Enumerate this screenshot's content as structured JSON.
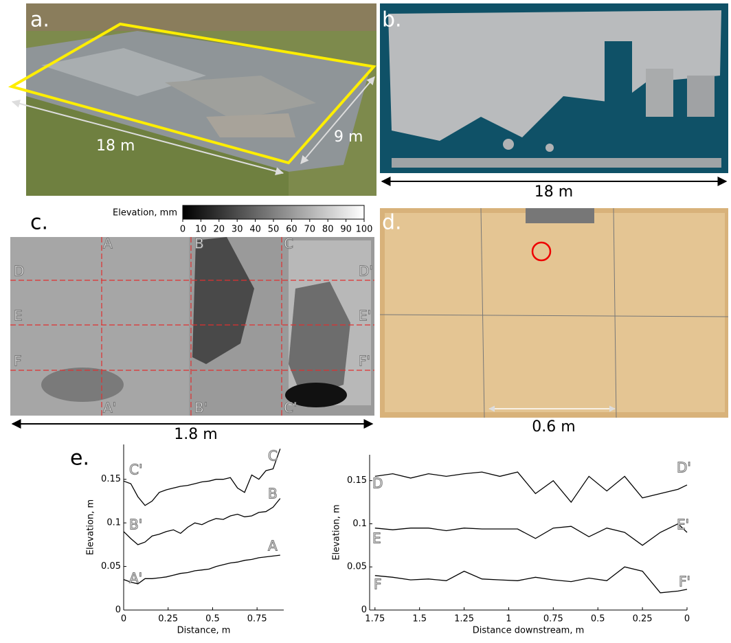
{
  "panels": {
    "a": {
      "label": "a.",
      "length": "18 m",
      "width": "9 m"
    },
    "b": {
      "label": "b.",
      "scale": "18 m"
    },
    "c": {
      "label": "c.",
      "scale": "1.8 m",
      "colorbar": {
        "title": "Elevation, mm",
        "ticks": [
          0,
          10,
          20,
          30,
          40,
          50,
          60,
          70,
          80,
          90,
          100
        ]
      },
      "sections": [
        "A",
        "A'",
        "B",
        "B'",
        "C",
        "C'",
        "D",
        "D'",
        "E",
        "E'",
        "F",
        "F'"
      ]
    },
    "d": {
      "label": "d.",
      "scale": "0.6 m"
    },
    "e": {
      "label": "e."
    }
  },
  "chart_data": [
    {
      "type": "line",
      "xlabel": "Distance, m",
      "ylabel": "Elevation, m",
      "x": [
        0,
        0.04,
        0.08,
        0.12,
        0.16,
        0.2,
        0.24,
        0.28,
        0.32,
        0.36,
        0.4,
        0.44,
        0.48,
        0.52,
        0.56,
        0.6,
        0.64,
        0.68,
        0.72,
        0.76,
        0.8,
        0.84,
        0.88
      ],
      "xlim": [
        0,
        0.9
      ],
      "xticks": [
        0,
        0.25,
        0.5,
        0.75
      ],
      "ylim": [
        0,
        0.19
      ],
      "yticks": [
        0,
        0.05,
        0.1,
        0.15
      ],
      "series": [
        {
          "name": "C",
          "color": "#000000",
          "values": [
            0.148,
            0.145,
            0.13,
            0.12,
            0.125,
            0.135,
            0.138,
            0.14,
            0.142,
            0.143,
            0.145,
            0.147,
            0.148,
            0.15,
            0.15,
            0.152,
            0.14,
            0.135,
            0.155,
            0.15,
            0.16,
            0.162,
            0.185
          ]
        },
        {
          "name": "B",
          "color": "#000000",
          "values": [
            0.09,
            0.082,
            0.075,
            0.078,
            0.085,
            0.087,
            0.09,
            0.092,
            0.088,
            0.095,
            0.1,
            0.098,
            0.102,
            0.105,
            0.104,
            0.108,
            0.11,
            0.107,
            0.108,
            0.112,
            0.113,
            0.118,
            0.128
          ]
        },
        {
          "name": "A",
          "color": "#000000",
          "values": [
            0.035,
            0.032,
            0.03,
            0.036,
            0.036,
            0.037,
            0.038,
            0.04,
            0.042,
            0.043,
            0.045,
            0.046,
            0.047,
            0.05,
            0.052,
            0.054,
            0.055,
            0.057,
            0.058,
            0.06,
            0.061,
            0.062,
            0.063
          ]
        }
      ],
      "annotations": [
        "C'",
        "C",
        "B'",
        "B",
        "A'",
        "A"
      ]
    },
    {
      "type": "line",
      "xlabel": "Distance downstream, m",
      "ylabel": "Elevation, m",
      "x": [
        1.75,
        1.65,
        1.55,
        1.45,
        1.35,
        1.25,
        1.15,
        1.05,
        0.95,
        0.85,
        0.75,
        0.65,
        0.55,
        0.45,
        0.35,
        0.25,
        0.15,
        0.05,
        0
      ],
      "xlim": [
        1.78,
        0
      ],
      "xticks": [
        1.75,
        1.5,
        1.25,
        1,
        0.75,
        0.5,
        0.25,
        0
      ],
      "ylim": [
        0,
        0.18
      ],
      "yticks": [
        0,
        0.05,
        0.1,
        0.15
      ],
      "series": [
        {
          "name": "D",
          "color": "#000000",
          "values": [
            0.155,
            0.158,
            0.153,
            0.158,
            0.155,
            0.158,
            0.16,
            0.155,
            0.16,
            0.135,
            0.15,
            0.125,
            0.155,
            0.138,
            0.155,
            0.13,
            0.135,
            0.14,
            0.145
          ]
        },
        {
          "name": "E",
          "color": "#000000",
          "values": [
            0.095,
            0.093,
            0.095,
            0.095,
            0.092,
            0.095,
            0.094,
            0.094,
            0.094,
            0.083,
            0.095,
            0.097,
            0.085,
            0.095,
            0.09,
            0.075,
            0.09,
            0.1,
            0.09
          ]
        },
        {
          "name": "F",
          "color": "#000000",
          "values": [
            0.04,
            0.038,
            0.035,
            0.036,
            0.034,
            0.045,
            0.036,
            0.035,
            0.034,
            0.038,
            0.035,
            0.033,
            0.037,
            0.034,
            0.05,
            0.045,
            0.02,
            0.022,
            0.024
          ]
        }
      ],
      "annotations": [
        "D'",
        "D",
        "E'",
        "E",
        "F'",
        "F"
      ]
    }
  ]
}
